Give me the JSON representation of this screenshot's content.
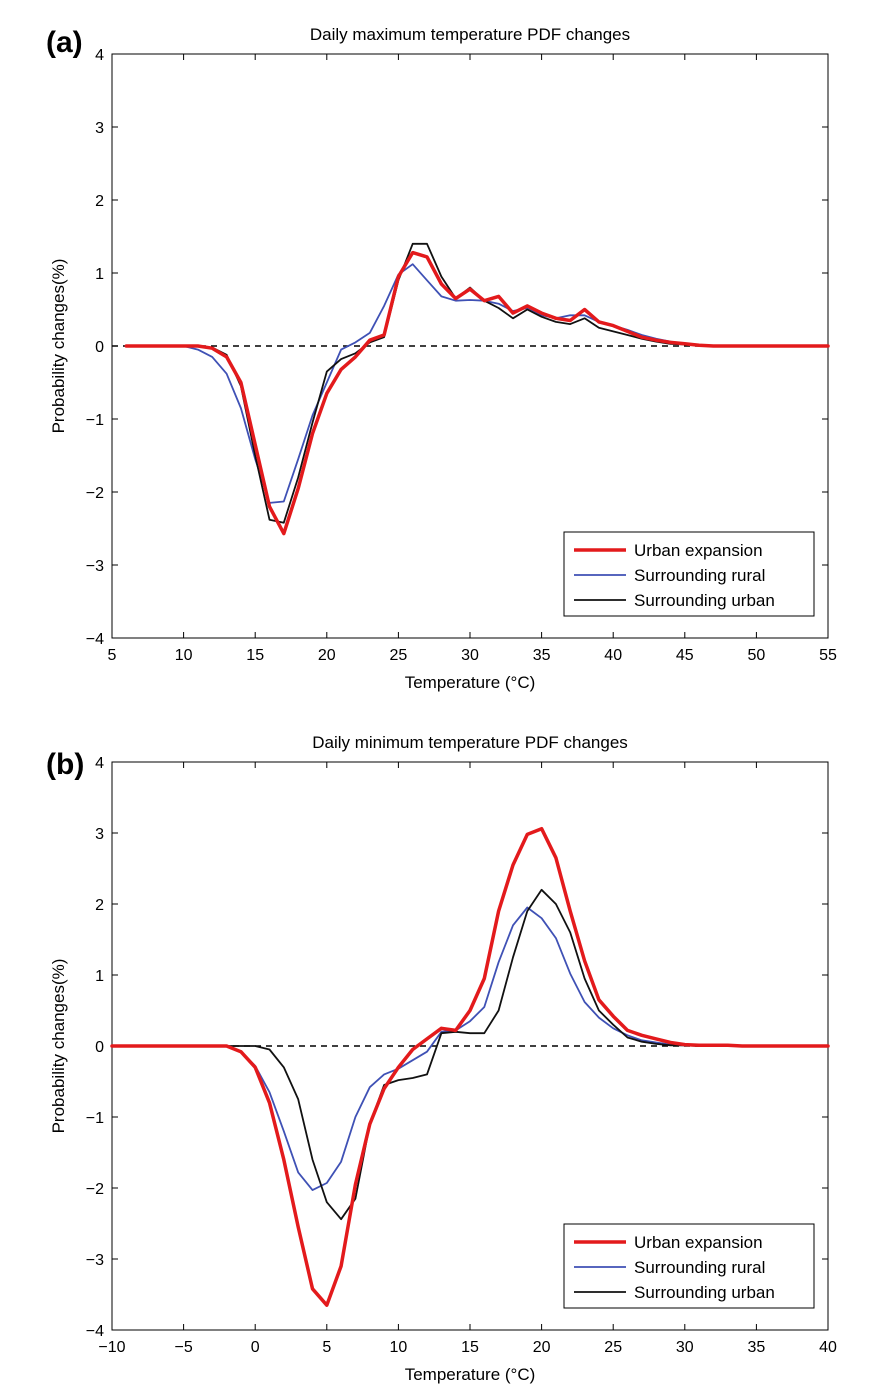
{
  "chart_data": [
    {
      "type": "line",
      "panel_label": "(a)",
      "title": "Daily maximum temperature PDF changes",
      "xlabel": "Temperature (°C)",
      "ylabel": "Probability changes(%)",
      "xlim": [
        5,
        55
      ],
      "ylim": [
        -4,
        4
      ],
      "xticks": [
        5,
        10,
        15,
        20,
        25,
        30,
        35,
        40,
        45,
        50,
        55
      ],
      "yticks": [
        -4,
        -3,
        -2,
        -1,
        0,
        1,
        2,
        3,
        4
      ],
      "xtick_labels": [
        "5",
        "10",
        "15",
        "20",
        "25",
        "30",
        "35",
        "40",
        "45",
        "50",
        "55"
      ],
      "ytick_labels": [
        "−4",
        "−3",
        "−2",
        "−1",
        "0",
        "1",
        "2",
        "3",
        "4"
      ],
      "zero_line": "dashed",
      "legend_position": "bottom-right",
      "series": [
        {
          "name": "Urban expansion",
          "color": "#e31a1c",
          "width": 3.5,
          "x": [
            6,
            7,
            8,
            9,
            10,
            11,
            12,
            13,
            14,
            15,
            16,
            17,
            18,
            19,
            20,
            21,
            22,
            23,
            24,
            25,
            26,
            27,
            28,
            29,
            30,
            31,
            32,
            33,
            34,
            35,
            36,
            37,
            38,
            39,
            40,
            41,
            42,
            43,
            44,
            45,
            46,
            47,
            48,
            49,
            50,
            55
          ],
          "y": [
            0,
            0,
            0,
            0,
            0,
            0,
            -0.03,
            -0.15,
            -0.5,
            -1.35,
            -2.2,
            -2.57,
            -1.95,
            -1.2,
            -0.65,
            -0.32,
            -0.15,
            0.08,
            0.15,
            0.95,
            1.28,
            1.22,
            0.85,
            0.65,
            0.78,
            0.62,
            0.68,
            0.45,
            0.55,
            0.45,
            0.38,
            0.35,
            0.5,
            0.33,
            0.28,
            0.2,
            0.12,
            0.08,
            0.05,
            0.03,
            0.01,
            0,
            0,
            0,
            0,
            0
          ]
        },
        {
          "name": "Surrounding rural",
          "color": "#3f51b5",
          "width": 1.8,
          "x": [
            6,
            7,
            8,
            9,
            10,
            11,
            12,
            13,
            14,
            15,
            16,
            17,
            18,
            19,
            20,
            21,
            22,
            23,
            24,
            25,
            26,
            27,
            28,
            29,
            30,
            31,
            32,
            33,
            34,
            35,
            36,
            37,
            38,
            39,
            40,
            41,
            42,
            43,
            44,
            45,
            46,
            47,
            48,
            49,
            50,
            55
          ],
          "y": [
            0,
            0,
            0,
            0,
            0,
            -0.05,
            -0.15,
            -0.38,
            -0.85,
            -1.55,
            -2.15,
            -2.13,
            -1.55,
            -0.95,
            -0.5,
            -0.05,
            0.05,
            0.18,
            0.55,
            0.98,
            1.12,
            0.9,
            0.68,
            0.62,
            0.63,
            0.62,
            0.58,
            0.48,
            0.52,
            0.42,
            0.38,
            0.42,
            0.42,
            0.33,
            0.28,
            0.22,
            0.15,
            0.1,
            0.06,
            0.03,
            0.01,
            0,
            0,
            0,
            0,
            0
          ]
        },
        {
          "name": "Surrounding urban",
          "color": "#111111",
          "width": 1.8,
          "x": [
            6,
            7,
            8,
            9,
            10,
            11,
            12,
            13,
            14,
            15,
            16,
            17,
            18,
            19,
            20,
            21,
            22,
            23,
            24,
            25,
            26,
            27,
            28,
            29,
            30,
            31,
            32,
            33,
            34,
            35,
            36,
            37,
            38,
            39,
            40,
            41,
            42,
            43,
            44,
            45,
            46,
            47,
            48,
            49,
            50,
            55
          ],
          "y": [
            0,
            0,
            0,
            0,
            0,
            0,
            -0.02,
            -0.12,
            -0.55,
            -1.5,
            -2.38,
            -2.42,
            -1.8,
            -1.05,
            -0.35,
            -0.18,
            -0.1,
            0.05,
            0.12,
            0.9,
            1.4,
            1.4,
            0.95,
            0.65,
            0.8,
            0.62,
            0.52,
            0.38,
            0.5,
            0.4,
            0.33,
            0.3,
            0.38,
            0.25,
            0.2,
            0.15,
            0.1,
            0.06,
            0.03,
            0.02,
            0.01,
            0,
            0,
            0,
            0,
            0
          ]
        }
      ]
    },
    {
      "type": "line",
      "panel_label": "(b)",
      "title": "Daily minimum temperature PDF changes",
      "xlabel": "Temperature (°C)",
      "ylabel": "Probability changes(%)",
      "xlim": [
        -10,
        40
      ],
      "ylim": [
        -4,
        4
      ],
      "xticks": [
        -10,
        -5,
        0,
        5,
        10,
        15,
        20,
        25,
        30,
        35,
        40
      ],
      "yticks": [
        -4,
        -3,
        -2,
        -1,
        0,
        1,
        2,
        3,
        4
      ],
      "xtick_labels": [
        "−10",
        "−5",
        "0",
        "5",
        "10",
        "15",
        "20",
        "25",
        "30",
        "35",
        "40"
      ],
      "ytick_labels": [
        "−4",
        "−3",
        "−2",
        "−1",
        "0",
        "1",
        "2",
        "3",
        "4"
      ],
      "zero_line": "dashed",
      "legend_position": "bottom-right",
      "series": [
        {
          "name": "Urban expansion",
          "color": "#e31a1c",
          "width": 3.5,
          "x": [
            -10,
            -5,
            -3,
            -2,
            -1,
            0,
            1,
            2,
            3,
            4,
            5,
            6,
            7,
            8,
            9,
            10,
            11,
            12,
            13,
            14,
            15,
            16,
            17,
            18,
            19,
            20,
            21,
            22,
            23,
            24,
            25,
            26,
            27,
            28,
            29,
            30,
            31,
            32,
            33,
            34,
            35,
            40
          ],
          "y": [
            0,
            0,
            0,
            0,
            -0.08,
            -0.3,
            -0.8,
            -1.6,
            -2.55,
            -3.42,
            -3.65,
            -3.1,
            -1.95,
            -1.1,
            -0.6,
            -0.3,
            -0.05,
            0.1,
            0.25,
            0.22,
            0.5,
            0.95,
            1.9,
            2.55,
            2.98,
            3.06,
            2.65,
            1.9,
            1.2,
            0.65,
            0.42,
            0.22,
            0.15,
            0.1,
            0.05,
            0.02,
            0.01,
            0.01,
            0.01,
            0,
            0,
            0
          ]
        },
        {
          "name": "Surrounding rural",
          "color": "#3f51b5",
          "width": 1.8,
          "x": [
            -10,
            -5,
            -3,
            -2,
            -1,
            0,
            1,
            2,
            3,
            4,
            5,
            6,
            7,
            8,
            9,
            10,
            11,
            12,
            13,
            14,
            15,
            16,
            17,
            18,
            19,
            20,
            21,
            22,
            23,
            24,
            25,
            26,
            27,
            28,
            29,
            30,
            31,
            32,
            33,
            34,
            35,
            40
          ],
          "y": [
            0,
            0,
            0,
            0,
            -0.08,
            -0.28,
            -0.65,
            -1.2,
            -1.78,
            -2.03,
            -1.93,
            -1.63,
            -1.0,
            -0.58,
            -0.4,
            -0.32,
            -0.2,
            -0.08,
            0.2,
            0.22,
            0.35,
            0.55,
            1.18,
            1.7,
            1.95,
            1.8,
            1.52,
            1.02,
            0.62,
            0.4,
            0.25,
            0.15,
            0.08,
            0.05,
            0.02,
            0.01,
            0.01,
            0,
            0,
            0,
            0,
            0
          ]
        },
        {
          "name": "Surrounding urban",
          "color": "#111111",
          "width": 1.8,
          "x": [
            -10,
            -5,
            -3,
            -2,
            -1,
            0,
            1,
            2,
            3,
            4,
            5,
            6,
            7,
            8,
            9,
            10,
            11,
            12,
            13,
            14,
            15,
            16,
            17,
            18,
            19,
            20,
            21,
            22,
            23,
            24,
            25,
            26,
            27,
            28,
            29,
            30,
            31,
            32,
            33,
            34,
            35,
            40
          ],
          "y": [
            0,
            0,
            0,
            0,
            0,
            0,
            -0.05,
            -0.3,
            -0.75,
            -1.6,
            -2.2,
            -2.44,
            -2.15,
            -1.1,
            -0.55,
            -0.48,
            -0.45,
            -0.4,
            0.18,
            0.2,
            0.18,
            0.18,
            0.5,
            1.25,
            1.9,
            2.2,
            2.0,
            1.6,
            0.95,
            0.5,
            0.3,
            0.12,
            0.06,
            0.03,
            0.01,
            0.01,
            0,
            0,
            0,
            0,
            0,
            0
          ]
        }
      ]
    }
  ]
}
